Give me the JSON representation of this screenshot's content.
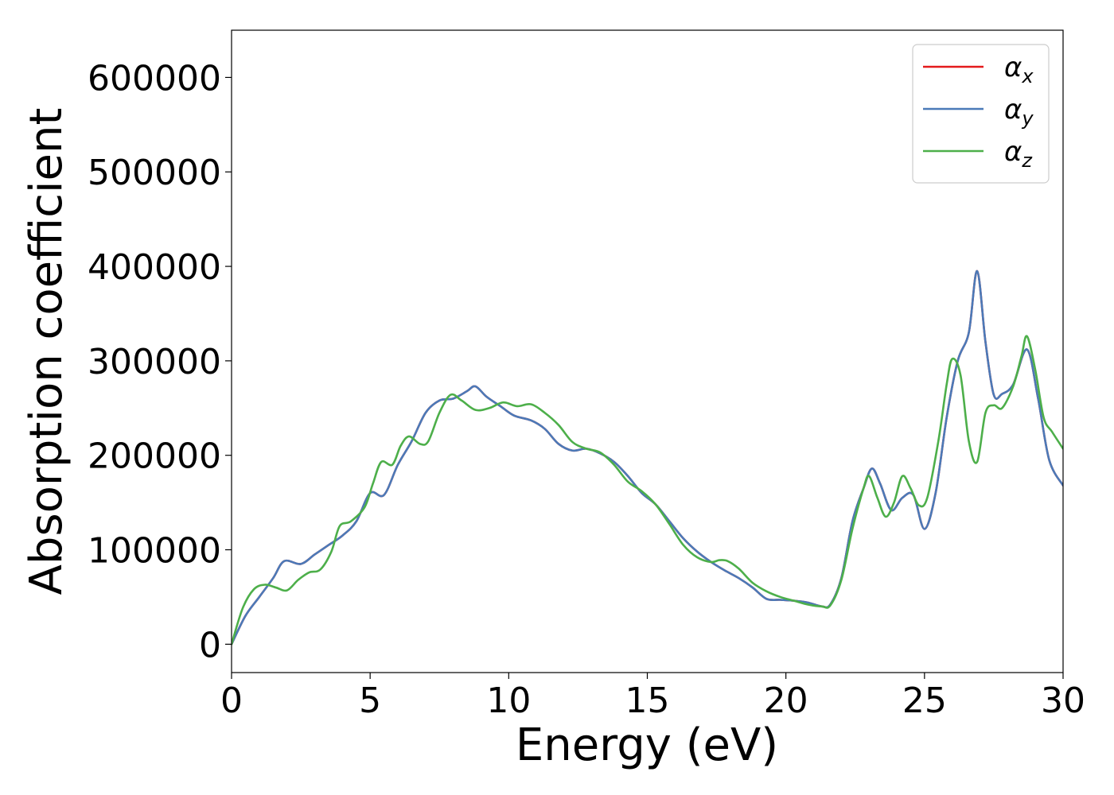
{
  "chart_data": {
    "type": "line",
    "title": "",
    "xlabel": "Energy (eV)",
    "ylabel": "Absorption coefficient",
    "xlim": [
      0,
      30
    ],
    "ylim": [
      -30000,
      650000
    ],
    "xticks": [
      0,
      5,
      10,
      15,
      20,
      25,
      30
    ],
    "yticks": [
      0,
      100000,
      200000,
      300000,
      400000,
      500000,
      600000
    ],
    "grid": false,
    "legend_position": "upper right",
    "series": [
      {
        "name": "αx",
        "name_main": "α",
        "name_sub": "x",
        "color": "#e41a1c",
        "x": [
          0,
          0.5,
          1,
          1.5,
          1.9,
          2.5,
          3,
          3.5,
          4,
          4.5,
          5,
          5.5,
          6,
          6.5,
          7,
          7.5,
          8,
          8.5,
          8.8,
          9.2,
          9.7,
          10.2,
          10.8,
          11.3,
          11.8,
          12.3,
          12.8,
          13.3,
          13.8,
          14.3,
          14.8,
          15.3,
          15.8,
          16.3,
          16.8,
          17.3,
          17.8,
          18.3,
          18.8,
          19.3,
          19.8,
          20.3,
          20.8,
          21.3,
          21.6,
          22,
          22.4,
          22.8,
          23.1,
          23.4,
          23.8,
          24.2,
          24.6,
          25,
          25.4,
          25.8,
          26.2,
          26.6,
          26.9,
          27.2,
          27.5,
          27.8,
          28.2,
          28.7,
          29.1,
          29.5,
          30
        ],
        "values": [
          0,
          30000,
          50000,
          70000,
          88000,
          85000,
          95000,
          105000,
          115000,
          130000,
          160000,
          158000,
          190000,
          215000,
          245000,
          258000,
          260000,
          268000,
          273000,
          262000,
          252000,
          242000,
          237000,
          228000,
          212000,
          205000,
          207000,
          202000,
          193000,
          178000,
          160000,
          148000,
          130000,
          112000,
          98000,
          87000,
          78000,
          70000,
          60000,
          48000,
          47000,
          46000,
          44000,
          40000,
          42000,
          70000,
          130000,
          165000,
          186000,
          170000,
          142000,
          155000,
          158000,
          122000,
          160000,
          240000,
          300000,
          330000,
          395000,
          320000,
          264000,
          265000,
          275000,
          312000,
          260000,
          195000,
          168000
        ]
      },
      {
        "name": "αy",
        "name_main": "α",
        "name_sub": "y",
        "color": "#4b7ab8",
        "x": [
          0,
          0.5,
          1,
          1.5,
          1.9,
          2.5,
          3,
          3.5,
          4,
          4.5,
          5,
          5.5,
          6,
          6.5,
          7,
          7.5,
          8,
          8.5,
          8.8,
          9.2,
          9.7,
          10.2,
          10.8,
          11.3,
          11.8,
          12.3,
          12.8,
          13.3,
          13.8,
          14.3,
          14.8,
          15.3,
          15.8,
          16.3,
          16.8,
          17.3,
          17.8,
          18.3,
          18.8,
          19.3,
          19.8,
          20.3,
          20.8,
          21.3,
          21.6,
          22,
          22.4,
          22.8,
          23.1,
          23.4,
          23.8,
          24.2,
          24.6,
          25,
          25.4,
          25.8,
          26.2,
          26.6,
          26.9,
          27.2,
          27.5,
          27.8,
          28.2,
          28.7,
          29.1,
          29.5,
          30
        ],
        "values": [
          0,
          30000,
          50000,
          70000,
          88000,
          85000,
          95000,
          105000,
          115000,
          130000,
          160000,
          158000,
          190000,
          215000,
          245000,
          258000,
          260000,
          268000,
          273000,
          262000,
          252000,
          242000,
          237000,
          228000,
          212000,
          205000,
          207000,
          202000,
          193000,
          178000,
          160000,
          148000,
          130000,
          112000,
          98000,
          87000,
          78000,
          70000,
          60000,
          48000,
          47000,
          46000,
          44000,
          40000,
          42000,
          70000,
          130000,
          165000,
          186000,
          170000,
          142000,
          155000,
          158000,
          122000,
          160000,
          240000,
          300000,
          330000,
          395000,
          320000,
          264000,
          265000,
          275000,
          312000,
          260000,
          195000,
          168000
        ]
      },
      {
        "name": "αz",
        "name_main": "α",
        "name_sub": "z",
        "color": "#4daf4a",
        "x": [
          0,
          0.4,
          0.8,
          1.2,
          1.6,
          2.0,
          2.4,
          2.8,
          3.2,
          3.6,
          3.9,
          4.3,
          4.8,
          5.1,
          5.4,
          5.8,
          6.1,
          6.4,
          6.8,
          7.1,
          7.5,
          7.9,
          8.3,
          8.8,
          9.3,
          9.8,
          10.3,
          10.8,
          11.3,
          11.8,
          12.3,
          12.8,
          13.3,
          13.8,
          14.3,
          14.8,
          15.3,
          15.8,
          16.3,
          16.8,
          17.3,
          17.6,
          17.9,
          18.3,
          18.8,
          19.3,
          19.8,
          20.3,
          20.8,
          21.3,
          21.6,
          22,
          22.4,
          22.8,
          23.0,
          23.3,
          23.6,
          23.9,
          24.2,
          24.5,
          24.8,
          25.1,
          25.5,
          25.8,
          26.0,
          26.3,
          26.6,
          26.9,
          27.2,
          27.5,
          27.8,
          28.2,
          28.5,
          28.7,
          29.0,
          29.3,
          29.6,
          30
        ],
        "values": [
          0,
          38000,
          58000,
          63000,
          60000,
          57000,
          68000,
          76000,
          79000,
          98000,
          125000,
          130000,
          145000,
          170000,
          193000,
          190000,
          210000,
          220000,
          212000,
          215000,
          245000,
          264000,
          258000,
          248000,
          250000,
          256000,
          252000,
          254000,
          245000,
          232000,
          214000,
          207000,
          203000,
          190000,
          172000,
          162000,
          148000,
          127000,
          105000,
          92000,
          87000,
          89000,
          88000,
          80000,
          65000,
          56000,
          50000,
          46000,
          42000,
          40000,
          41000,
          68000,
          122000,
          165000,
          178000,
          155000,
          135000,
          150000,
          178000,
          165000,
          147000,
          155000,
          215000,
          275000,
          302000,
          285000,
          215000,
          193000,
          245000,
          253000,
          250000,
          273000,
          305000,
          326000,
          290000,
          240000,
          225000,
          207000
        ]
      }
    ]
  }
}
